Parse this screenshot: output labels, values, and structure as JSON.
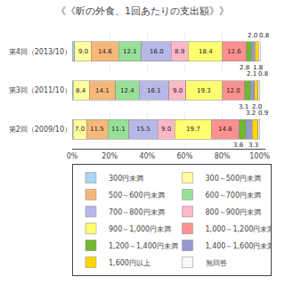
{
  "chart_data": {
    "type": "bar",
    "orientation": "horizontal",
    "stacked": true,
    "title": "《《昕の外食、1回あたりの支出額》》",
    "categories": [
      "第4回（2013/10）",
      "第3回（2011/10）",
      "第2回（2009/10）"
    ],
    "series": [
      {
        "name": "300円未満",
        "color": "#aad4f0",
        "values": [
          1.2,
          0.7,
          0.7
        ],
        "data_labels": false
      },
      {
        "name": "300～500円未満",
        "color": "#ffffa0",
        "values": [
          9.0,
          8.4,
          7.0
        ],
        "data_labels": true,
        "value_labels": [
          "9.0",
          "8.4",
          "7.0"
        ]
      },
      {
        "name": "500～600円未満",
        "color": "#f5b87a",
        "values": [
          14.6,
          14.1,
          11.5
        ],
        "data_labels": true,
        "value_labels": [
          "14.6",
          "14.1",
          "11.5"
        ]
      },
      {
        "name": "600～700円未満",
        "color": "#98e098",
        "values": [
          12.1,
          12.4,
          11.1
        ],
        "data_labels": true,
        "value_labels": [
          "12.1",
          "12.4",
          "11.1"
        ]
      },
      {
        "name": "700～800円未満",
        "color": "#b8b8e8",
        "values": [
          16.0,
          16.1,
          15.5
        ],
        "data_labels": true,
        "value_labels": [
          "16.0",
          "16.1",
          "15.5"
        ]
      },
      {
        "name": "800～900円未満",
        "color": "#ffb8c8",
        "values": [
          8.9,
          9.0,
          9.0
        ],
        "data_labels": true,
        "value_labels": [
          "8.9",
          "9.0",
          "9.0"
        ]
      },
      {
        "name": "900～1,000円未満",
        "color": "#ffff70",
        "values": [
          18.4,
          19.3,
          19.7
        ],
        "data_labels": true,
        "value_labels": [
          "18.4",
          "19.3",
          "19.7"
        ]
      },
      {
        "name": "1,000～1,200円未満",
        "color": "#ff9090",
        "values": [
          12.6,
          12.0,
          14.6
        ],
        "data_labels": true,
        "value_labels": [
          "12.6",
          "12.0",
          "14.6"
        ]
      },
      {
        "name": "1,200～1,400円未満",
        "color": "#70b830",
        "values": [
          2.8,
          3.1,
          3.6
        ],
        "data_labels": true,
        "value_labels": [
          "2.8",
          "3.1",
          "3.6"
        ]
      },
      {
        "name": "1,400～1,600円未満",
        "color": "#9898d0",
        "values": [
          1.8,
          2.0,
          3.3
        ],
        "data_labels": true,
        "value_labels": [
          "1.8",
          "2.0",
          "3.3"
        ]
      },
      {
        "name": "1,600円以上",
        "color": "#ffd700",
        "values": [
          2.0,
          2.1,
          3.2
        ],
        "data_labels": true,
        "value_labels": [
          "2.0",
          "2.1",
          "3.2"
        ]
      },
      {
        "name": "無回答",
        "color": "#f8f8f8",
        "values": [
          0.8,
          0.8,
          0.9
        ],
        "data_labels": true,
        "value_labels": [
          "0.8",
          "0.8",
          "0.9"
        ]
      }
    ],
    "xlim": [
      0,
      103
    ],
    "xticks": [
      {
        "value": 0,
        "label": "0%"
      },
      {
        "value": 20,
        "label": "20%"
      },
      {
        "value": 40,
        "label": "40%"
      },
      {
        "value": 60,
        "label": "60%"
      },
      {
        "value": 80,
        "label": "80%"
      },
      {
        "value": 100,
        "label": "100%"
      }
    ],
    "grid": true,
    "legend": "bottom"
  }
}
